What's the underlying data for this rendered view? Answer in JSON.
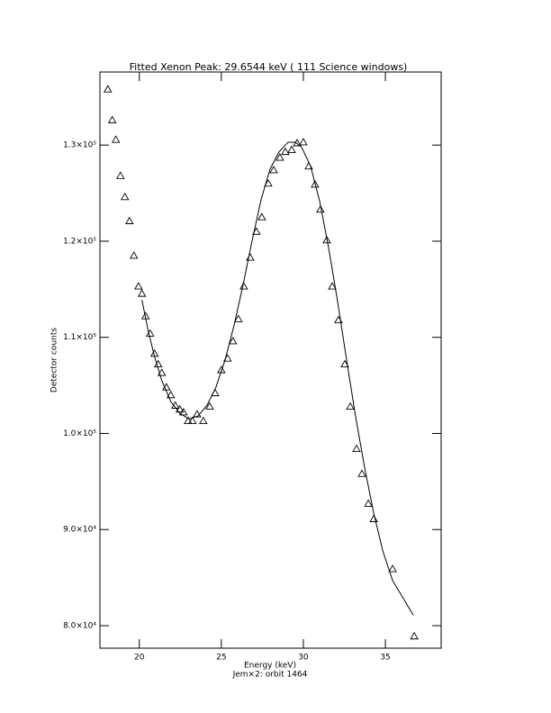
{
  "chart_data": {
    "type": "scatter",
    "title": "Fitted Xenon Peak:       29.6544 keV (     111 Science windows)",
    "x_label": "Energy (keV)",
    "subtitle": "Jem×2: orbit 1464",
    "y_label": "Detector counts",
    "xlim": [
      17.6,
      38.4
    ],
    "ylim": [
      77660,
      137600
    ],
    "xticks": [
      20,
      25,
      30,
      35
    ],
    "yticks": [
      {
        "value": 80000,
        "label": "8.0×10⁴"
      },
      {
        "value": 90000,
        "label": "9.0×10⁴"
      },
      {
        "value": 100000,
        "label": "1.0×10⁵"
      },
      {
        "value": 110000,
        "label": "1.1×10⁵"
      },
      {
        "value": 120000,
        "label": "1.2×10⁵"
      },
      {
        "value": 130000,
        "label": "1.3×10⁵"
      }
    ],
    "series": [
      {
        "style": "triangle",
        "color": "#000000",
        "x": [
          18.08,
          18.35,
          18.57,
          18.85,
          19.12,
          19.4,
          19.67,
          19.95,
          20.16,
          20.38,
          20.66,
          20.93,
          21.15,
          21.37,
          21.65,
          21.92,
          22.2,
          22.47,
          22.69,
          22.97,
          23.24,
          23.52,
          23.9,
          24.29,
          24.62,
          25.0,
          25.38,
          25.71,
          26.04,
          26.37,
          26.76,
          27.14,
          27.47,
          27.86,
          28.19,
          28.57,
          28.9,
          29.29,
          29.62,
          30.0,
          30.33,
          30.71,
          31.04,
          31.43,
          31.76,
          32.14,
          32.53,
          32.86,
          33.24,
          33.57,
          33.96,
          34.29,
          35.44,
          36.76
        ],
        "values": [
          135800,
          132600,
          130560,
          126800,
          124600,
          122100,
          118500,
          115300,
          114550,
          112200,
          110400,
          108300,
          107200,
          106300,
          104800,
          104000,
          102900,
          102500,
          102200,
          101300,
          101300,
          102000,
          101300,
          102800,
          104200,
          106600,
          107800,
          109600,
          111900,
          115300,
          118300,
          121000,
          122500,
          126000,
          127400,
          128700,
          129300,
          129500,
          130200,
          130300,
          127800,
          125900,
          123300,
          120100,
          115300,
          111800,
          107200,
          102800,
          98400,
          95800,
          92700,
          91100,
          85900,
          78900
        ]
      },
      {
        "style": "line",
        "color": "#000000",
        "x": [
          20.16,
          20.55,
          20.93,
          21.37,
          21.92,
          22.47,
          23.02,
          23.57,
          24.12,
          24.67,
          25.22,
          25.77,
          26.32,
          26.87,
          27.42,
          27.97,
          28.52,
          29.07,
          29.51,
          29.89,
          30.44,
          30.99,
          31.54,
          32.09,
          32.64,
          33.19,
          33.74,
          34.29,
          34.84,
          35.44,
          36.7
        ],
        "values": [
          113900,
          110600,
          108000,
          105500,
          103300,
          102100,
          101500,
          101800,
          102900,
          104800,
          107600,
          111200,
          115400,
          120000,
          124300,
          127500,
          129300,
          130300,
          130300,
          129800,
          127800,
          124200,
          119300,
          113700,
          107600,
          101700,
          96400,
          91700,
          87800,
          84700,
          81100
        ]
      }
    ]
  }
}
